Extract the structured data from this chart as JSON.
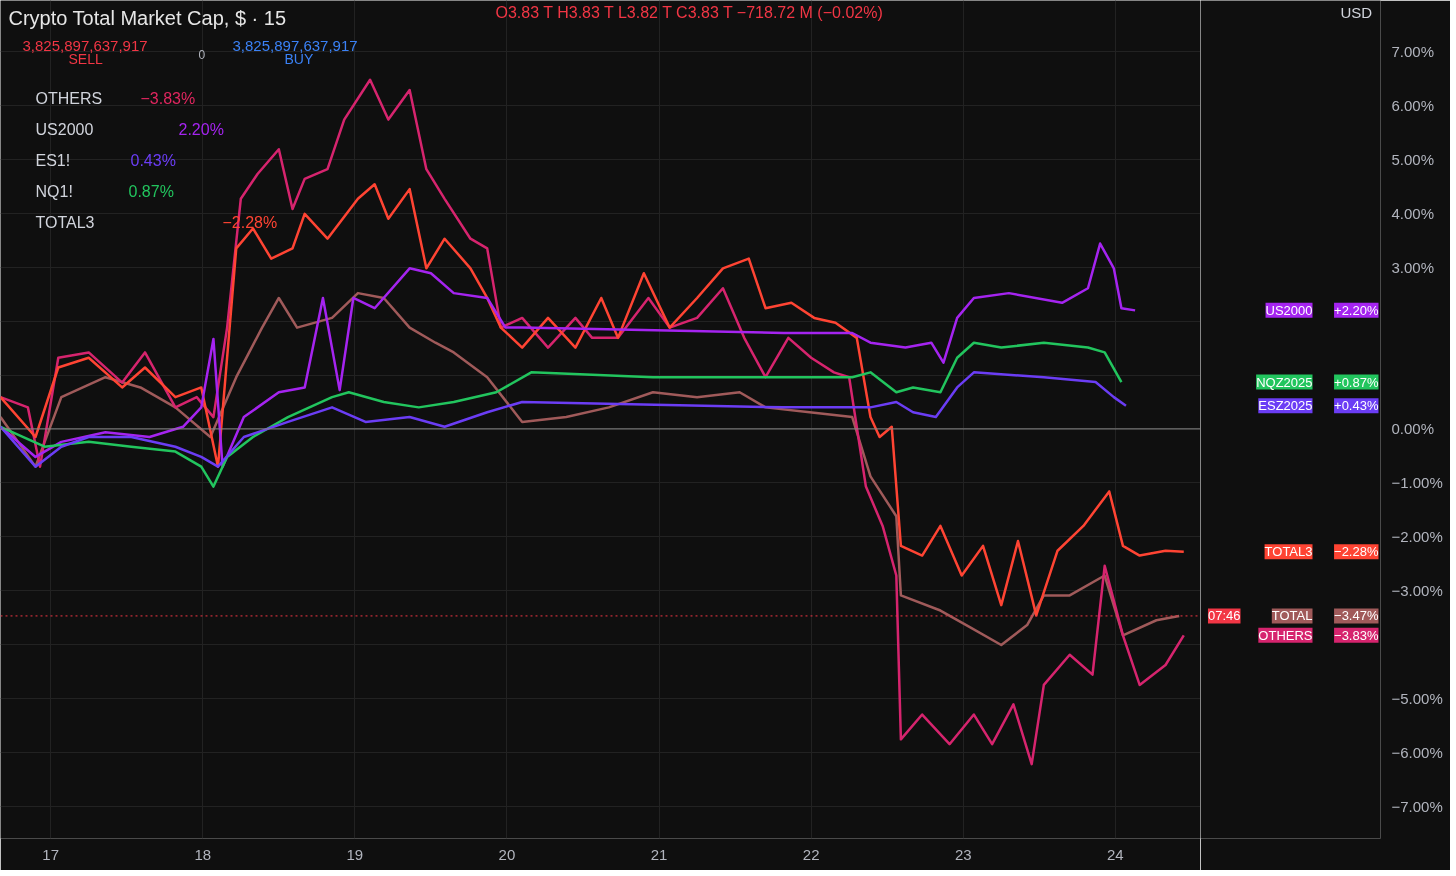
{
  "chart_data": {
    "type": "line",
    "title": "Crypto Total Market Cap, $ · 15",
    "xlim": [
      16.67,
      24.56
    ],
    "ylim": [
      -7.6,
      7.95
    ],
    "xticks": [
      17,
      18,
      19,
      20,
      21,
      22,
      23,
      24
    ],
    "yticks": [
      {
        "value": -7,
        "label": "−7.00%"
      },
      {
        "value": -6,
        "label": "−6.00%"
      },
      {
        "value": -5,
        "label": "−5.00%"
      },
      {
        "value": -4,
        "label": null
      },
      {
        "value": -3,
        "label": "−3.00%"
      },
      {
        "value": -2,
        "label": "−2.00%"
      },
      {
        "value": -1,
        "label": "−1.00%"
      },
      {
        "value": 0,
        "label": "0.00%"
      },
      {
        "value": 1,
        "label": null
      },
      {
        "value": 2,
        "label": null
      },
      {
        "value": 3,
        "label": "3.00%"
      },
      {
        "value": 4,
        "label": "4.00%"
      },
      {
        "value": 5,
        "label": "5.00%"
      },
      {
        "value": 6,
        "label": "6.00%"
      },
      {
        "value": 7,
        "label": "7.00%"
      }
    ],
    "grid": true,
    "legend": "right",
    "line_style": "solid",
    "marker": "none",
    "ref_lines": [
      {
        "axis": "y",
        "value": 0,
        "color": "#8a8a8a",
        "line_style": "solid"
      },
      {
        "axis": "y",
        "value": -3.47,
        "color": "#f23645",
        "line_style": "dotted"
      }
    ],
    "series": [
      {
        "name": "TOTAL",
        "color": "#a05a5a",
        "x": [
          16.67,
          16.9,
          17.07,
          17.36,
          17.59,
          17.82,
          18.05,
          18.22,
          18.39,
          18.5,
          18.62,
          18.85,
          19.02,
          19.19,
          19.36,
          19.53,
          19.65,
          19.87,
          20.1,
          20.39,
          20.67,
          20.96,
          21.25,
          21.53,
          21.7,
          21.99,
          22.27,
          22.39,
          22.56,
          22.59,
          22.85,
          23.02,
          23.25,
          23.42,
          23.53,
          23.7,
          23.93,
          24.05,
          24.27,
          24.42
        ],
        "values": [
          0.22,
          -0.7,
          0.59,
          0.96,
          0.77,
          0.4,
          -0.15,
          0.96,
          1.88,
          2.43,
          1.88,
          2.06,
          2.52,
          2.43,
          1.88,
          1.6,
          1.42,
          0.96,
          0.13,
          0.22,
          0.4,
          0.68,
          0.59,
          0.68,
          0.4,
          0.31,
          0.22,
          -0.88,
          -1.62,
          -3.09,
          -3.37,
          -3.64,
          -4.01,
          -3.64,
          -3.09,
          -3.09,
          -2.72,
          -3.83,
          -3.55,
          -3.47
        ]
      },
      {
        "name": "OTHERS",
        "color": "#d6246e",
        "x": [
          16.67,
          16.85,
          16.93,
          17.05,
          17.25,
          17.47,
          17.62,
          17.82,
          17.96,
          18.07,
          18.16,
          18.25,
          18.36,
          18.5,
          18.59,
          18.67,
          18.82,
          18.93,
          19.1,
          19.22,
          19.36,
          19.47,
          19.59,
          19.76,
          19.87,
          19.96,
          20.1,
          20.27,
          20.45,
          20.56,
          20.73,
          20.93,
          21.07,
          21.25,
          21.42,
          21.56,
          21.7,
          21.85,
          22.0,
          22.15,
          22.25,
          22.36,
          22.47,
          22.56,
          22.59,
          22.73,
          22.91,
          23.07,
          23.19,
          23.33,
          23.45,
          23.53,
          23.7,
          23.85,
          23.93,
          24.05,
          24.16,
          24.33,
          24.45
        ],
        "values": [
          0.59,
          0.4,
          -0.7,
          1.32,
          1.42,
          0.86,
          1.42,
          0.4,
          0.59,
          0.22,
          1.88,
          4.27,
          4.73,
          5.19,
          4.08,
          4.64,
          4.82,
          5.74,
          6.48,
          5.74,
          6.29,
          4.82,
          4.27,
          3.53,
          3.35,
          1.88,
          2.06,
          1.51,
          2.06,
          1.69,
          1.69,
          2.43,
          1.88,
          2.06,
          2.61,
          1.69,
          0.96,
          1.69,
          1.32,
          1.05,
          0.96,
          -1.07,
          -1.8,
          -2.72,
          -5.76,
          -5.3,
          -5.85,
          -5.3,
          -5.85,
          -5.11,
          -6.22,
          -4.75,
          -4.19,
          -4.56,
          -2.54,
          -3.83,
          -4.75,
          -4.38,
          -3.83
        ]
      },
      {
        "name": "TOTAL3",
        "color": "#ff4433",
        "x": [
          16.67,
          16.9,
          17.05,
          17.25,
          17.47,
          17.62,
          17.82,
          17.99,
          18.1,
          18.22,
          18.33,
          18.45,
          18.59,
          18.67,
          18.82,
          19.02,
          19.13,
          19.22,
          19.36,
          19.47,
          19.59,
          19.76,
          19.87,
          19.96,
          20.1,
          20.27,
          20.45,
          20.62,
          20.73,
          20.9,
          21.07,
          21.25,
          21.42,
          21.59,
          21.7,
          21.87,
          22.02,
          22.16,
          22.3,
          22.39,
          22.45,
          22.53,
          22.59,
          22.73,
          22.85,
          22.99,
          23.13,
          23.25,
          23.36,
          23.48,
          23.62,
          23.79,
          23.96,
          24.05,
          24.16,
          24.33,
          24.45
        ],
        "values": [
          0.59,
          -0.15,
          1.14,
          1.32,
          0.77,
          1.14,
          0.59,
          0.77,
          -0.7,
          3.35,
          3.72,
          3.16,
          3.35,
          3.99,
          3.53,
          4.27,
          4.54,
          3.9,
          4.45,
          2.98,
          3.53,
          2.98,
          2.43,
          1.88,
          1.51,
          2.06,
          1.51,
          2.43,
          1.69,
          2.89,
          1.88,
          2.43,
          2.98,
          3.16,
          2.24,
          2.34,
          2.06,
          1.97,
          1.69,
          0.22,
          -0.15,
          0.04,
          -2.17,
          -2.35,
          -1.8,
          -2.72,
          -2.17,
          -3.27,
          -2.08,
          -3.46,
          -2.26,
          -1.8,
          -1.16,
          -2.17,
          -2.35,
          -2.26,
          -2.28
        ]
      },
      {
        "name": "US2000",
        "color": "#a524f0",
        "x": [
          16.67,
          16.9,
          17.07,
          17.36,
          17.65,
          17.87,
          17.99,
          18.07,
          18.13,
          18.27,
          18.5,
          18.67,
          18.79,
          18.9,
          18.99,
          19.13,
          19.36,
          19.5,
          19.65,
          19.87,
          19.99,
          20.1,
          21.82,
          22.27,
          22.39,
          22.62,
          22.79,
          22.87,
          22.96,
          23.07,
          23.3,
          23.65,
          23.82,
          23.9,
          23.99,
          24.04,
          24.13
        ],
        "values": [
          0.04,
          -0.52,
          -0.24,
          -0.06,
          -0.15,
          0.04,
          0.4,
          1.67,
          -0.7,
          0.22,
          0.68,
          0.77,
          2.43,
          0.72,
          2.43,
          2.24,
          2.98,
          2.89,
          2.52,
          2.43,
          1.88,
          1.88,
          1.78,
          1.78,
          1.6,
          1.51,
          1.6,
          1.23,
          2.06,
          2.43,
          2.52,
          2.34,
          2.61,
          3.44,
          2.98,
          2.24,
          2.2
        ]
      },
      {
        "name": "NQZ2025",
        "color": "#22c55e",
        "x": [
          16.67,
          16.96,
          17.25,
          17.53,
          17.82,
          17.99,
          18.07,
          18.16,
          18.33,
          18.56,
          18.85,
          18.96,
          19.19,
          19.42,
          19.65,
          19.93,
          20.16,
          20.96,
          21.82,
          22.27,
          22.39,
          22.56,
          22.67,
          22.85,
          22.96,
          23.07,
          23.25,
          23.53,
          23.82,
          23.93,
          24.04
        ],
        "values": [
          0.04,
          -0.33,
          -0.24,
          -0.33,
          -0.42,
          -0.7,
          -1.07,
          -0.52,
          -0.15,
          0.22,
          0.59,
          0.68,
          0.5,
          0.4,
          0.5,
          0.68,
          1.05,
          0.96,
          0.96,
          0.96,
          1.05,
          0.68,
          0.77,
          0.68,
          1.32,
          1.6,
          1.51,
          1.6,
          1.51,
          1.42,
          0.87
        ]
      },
      {
        "name": "ESZ2025",
        "color": "#6b3df5",
        "x": [
          16.67,
          16.9,
          17.07,
          17.25,
          17.53,
          17.82,
          17.99,
          18.1,
          18.27,
          18.56,
          18.85,
          19.07,
          19.36,
          19.59,
          19.87,
          20.1,
          21.82,
          22.39,
          22.56,
          22.67,
          22.82,
          22.96,
          23.07,
          23.53,
          23.87,
          23.99,
          24.07
        ],
        "values": [
          0.04,
          -0.7,
          -0.33,
          -0.15,
          -0.15,
          -0.33,
          -0.52,
          -0.7,
          -0.15,
          0.13,
          0.4,
          0.13,
          0.22,
          0.04,
          0.31,
          0.5,
          0.4,
          0.4,
          0.5,
          0.31,
          0.22,
          0.77,
          1.05,
          0.96,
          0.87,
          0.59,
          0.43
        ]
      }
    ],
    "annotations": [
      "O3.83 T  H3.83 T  L3.82 T  C3.83 T  −718.72 M (−0.02%)",
      "3,825,897,637,917",
      "SELL",
      "0",
      "3,825,897,637,917",
      "BUY",
      "OTHERS",
      "−3.83%",
      "US2000",
      "2.20%",
      "ES1!",
      "0.43%",
      "NQ1!",
      "0.87%",
      "TOTAL3",
      "−2.28%",
      "USD",
      "+2.20%",
      "+0.87%",
      "+0.43%",
      "−2.28%",
      "−3.47%",
      "07:46",
      "−3.83%"
    ]
  }
}
